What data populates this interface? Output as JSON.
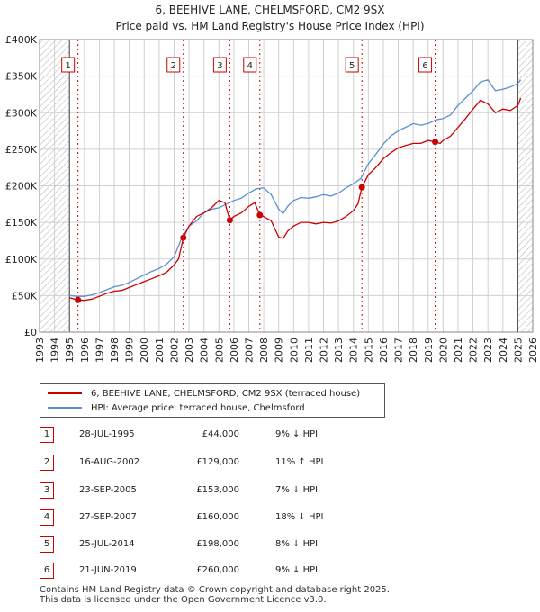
{
  "title": "6, BEEHIVE LANE, CHELMSFORD, CM2 9SX",
  "subtitle": "Price paid vs. HM Land Registry's House Price Index (HPI)",
  "colors": {
    "property": "#cc0000",
    "hpi": "#5b8fd0",
    "hatch": "#bbbbbb",
    "grid": "#d0d0d0"
  },
  "chart_data": {
    "type": "line",
    "title": "6, BEEHIVE LANE, CHELMSFORD, CM2 9SX",
    "xlabel": "",
    "ylabel": "",
    "xlim": [
      1993,
      2026
    ],
    "ylim": [
      0,
      400000
    ],
    "y_ticks": [
      0,
      50000,
      100000,
      150000,
      200000,
      250000,
      300000,
      350000,
      400000
    ],
    "y_tick_labels": [
      "£0",
      "£50K",
      "£100K",
      "£150K",
      "£200K",
      "£250K",
      "£300K",
      "£350K",
      "£400K"
    ],
    "x_ticks": [
      1993,
      1994,
      1995,
      1996,
      1997,
      1998,
      1999,
      2000,
      2001,
      2002,
      2003,
      2004,
      2005,
      2006,
      2007,
      2008,
      2009,
      2010,
      2011,
      2012,
      2013,
      2014,
      2015,
      2016,
      2017,
      2018,
      2019,
      2020,
      2021,
      2022,
      2023,
      2024,
      2025,
      2026
    ],
    "x_tick_labels": [
      "1993",
      "1994",
      "1995",
      "1996",
      "1997",
      "1998",
      "1999",
      "2000",
      "2001",
      "2002",
      "2003",
      "2004",
      "2005",
      "2006",
      "2007",
      "2008",
      "2009",
      "2010",
      "2011",
      "2012",
      "2013",
      "2014",
      "2015",
      "2016",
      "2017",
      "2018",
      "2019",
      "2020",
      "2021",
      "2022",
      "2023",
      "2024",
      "2025",
      "2026"
    ],
    "hatched_ranges": [
      [
        1993,
        1995.0
      ],
      [
        2025.0,
        2026
      ]
    ],
    "series": [
      {
        "name": "6, BEEHIVE LANE, CHELMSFORD, CM2 9SX (terraced house)",
        "x": [
          1995.0,
          1995.57,
          1996.0,
          1996.5,
          1997.0,
          1997.5,
          1998.0,
          1998.5,
          1999.0,
          1999.5,
          2000.0,
          2000.5,
          2001.0,
          2001.5,
          2002.0,
          2002.3,
          2002.62,
          2003.0,
          2003.5,
          2004.0,
          2004.5,
          2005.0,
          2005.4,
          2005.73,
          2006.0,
          2006.5,
          2007.0,
          2007.4,
          2007.74,
          2008.0,
          2008.5,
          2009.0,
          2009.3,
          2009.6,
          2010.0,
          2010.5,
          2011.0,
          2011.5,
          2012.0,
          2012.5,
          2013.0,
          2013.5,
          2014.0,
          2014.3,
          2014.57,
          2015.0,
          2015.5,
          2016.0,
          2016.5,
          2017.0,
          2017.5,
          2018.0,
          2018.5,
          2019.0,
          2019.47,
          2019.8,
          2020.0,
          2020.5,
          2021.0,
          2021.5,
          2022.0,
          2022.5,
          2023.0,
          2023.5,
          2024.0,
          2024.5,
          2025.0,
          2025.2
        ],
        "values": [
          47000,
          44000,
          43500,
          45000,
          49000,
          53000,
          56000,
          57000,
          61000,
          65000,
          69000,
          73000,
          77000,
          82000,
          92000,
          100000,
          129000,
          145000,
          158000,
          163000,
          170000,
          180000,
          177000,
          153000,
          158000,
          163000,
          172000,
          177000,
          160000,
          158000,
          152000,
          130000,
          128000,
          138000,
          145000,
          150000,
          150000,
          148000,
          150000,
          149000,
          152000,
          158000,
          166000,
          175000,
          198000,
          215000,
          225000,
          237000,
          245000,
          252000,
          255000,
          258000,
          258000,
          262000,
          260000,
          258000,
          262000,
          268000,
          280000,
          292000,
          305000,
          317000,
          312000,
          300000,
          305000,
          303000,
          310000,
          320000
        ]
      },
      {
        "name": "HPI: Average price, terraced house, Chelmsford",
        "x": [
          1995.0,
          1995.5,
          1996.0,
          1996.5,
          1997.0,
          1997.5,
          1998.0,
          1998.5,
          1999.0,
          1999.5,
          2000.0,
          2000.5,
          2001.0,
          2001.5,
          2002.0,
          2002.5,
          2003.0,
          2003.5,
          2004.0,
          2004.5,
          2005.0,
          2005.5,
          2006.0,
          2006.5,
          2007.0,
          2007.5,
          2008.0,
          2008.5,
          2009.0,
          2009.3,
          2009.6,
          2010.0,
          2010.5,
          2011.0,
          2011.5,
          2012.0,
          2012.5,
          2013.0,
          2013.5,
          2014.0,
          2014.5,
          2015.0,
          2015.5,
          2016.0,
          2016.5,
          2017.0,
          2017.5,
          2018.0,
          2018.5,
          2019.0,
          2019.5,
          2020.0,
          2020.5,
          2021.0,
          2021.5,
          2022.0,
          2022.5,
          2023.0,
          2023.5,
          2024.0,
          2024.5,
          2025.0,
          2025.2
        ],
        "values": [
          50000,
          49000,
          49000,
          51000,
          54000,
          58000,
          62000,
          64000,
          68000,
          73000,
          78000,
          83000,
          87000,
          93000,
          103000,
          128000,
          145000,
          152000,
          163000,
          168000,
          170000,
          175000,
          180000,
          183000,
          190000,
          196000,
          197000,
          188000,
          168000,
          162000,
          172000,
          180000,
          184000,
          183000,
          185000,
          188000,
          186000,
          190000,
          197000,
          203000,
          210000,
          230000,
          243000,
          257000,
          268000,
          275000,
          280000,
          285000,
          283000,
          285000,
          290000,
          292000,
          297000,
          310000,
          320000,
          330000,
          342000,
          345000,
          330000,
          332000,
          335000,
          340000,
          345000
        ]
      }
    ],
    "sales": [
      {
        "label": "1",
        "x": 1995.57,
        "price": 44000
      },
      {
        "label": "2",
        "x": 2002.62,
        "price": 129000
      },
      {
        "label": "3",
        "x": 2005.73,
        "price": 153000
      },
      {
        "label": "4",
        "x": 2007.74,
        "price": 160000
      },
      {
        "label": "5",
        "x": 2014.57,
        "price": 198000
      },
      {
        "label": "6",
        "x": 2019.47,
        "price": 260000
      }
    ]
  },
  "legend": {
    "property_label": "6, BEEHIVE LANE, CHELMSFORD, CM2 9SX (terraced house)",
    "hpi_label": "HPI: Average price, terraced house, Chelmsford"
  },
  "sales_table": [
    {
      "num": "1",
      "date": "28-JUL-1995",
      "price": "£44,000",
      "hpi": "9% ↓ HPI"
    },
    {
      "num": "2",
      "date": "16-AUG-2002",
      "price": "£129,000",
      "hpi": "11% ↑ HPI"
    },
    {
      "num": "3",
      "date": "23-SEP-2005",
      "price": "£153,000",
      "hpi": "7% ↓ HPI"
    },
    {
      "num": "4",
      "date": "27-SEP-2007",
      "price": "£160,000",
      "hpi": "18% ↓ HPI"
    },
    {
      "num": "5",
      "date": "25-JUL-2014",
      "price": "£198,000",
      "hpi": "8% ↓ HPI"
    },
    {
      "num": "6",
      "date": "21-JUN-2019",
      "price": "£260,000",
      "hpi": "9% ↓ HPI"
    }
  ],
  "footer": {
    "line1": "Contains HM Land Registry data © Crown copyright and database right 2025.",
    "line2": "This data is licensed under the Open Government Licence v3.0."
  }
}
